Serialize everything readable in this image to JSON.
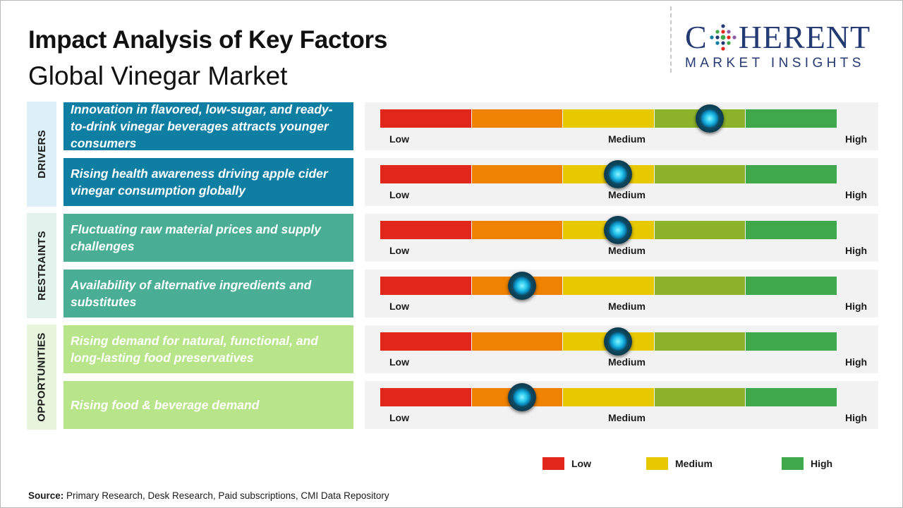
{
  "header": {
    "title": "Impact Analysis of Key Factors",
    "subtitle": "Global Vinegar Market"
  },
  "logo": {
    "brand_prefix": "C",
    "brand_suffix": "HERENT",
    "tagline": "MARKET INSIGHTS",
    "brand_color": "#243a73"
  },
  "chart_data": {
    "type": "bar",
    "title": "Impact Analysis of Key Factors",
    "subtitle": "Global Vinegar Market",
    "scale_labels": [
      "Low",
      "Medium",
      "High"
    ],
    "scale_range": [
      0,
      5
    ],
    "segment_colors": [
      "#e1261c",
      "#ef8200",
      "#e8c800",
      "#8db32a",
      "#3fa84a"
    ],
    "categories": [
      {
        "name": "DRIVERS",
        "band_color": "#ddf0f7",
        "factor_color": "#0f7ea3",
        "factors": [
          {
            "label": "Innovation in flavored, low-sugar, and ready-to-drink vinegar beverages attracts younger consumers",
            "value": 3.6
          },
          {
            "label": "Rising health awareness driving apple cider vinegar consumption globally",
            "value": 2.6
          }
        ]
      },
      {
        "name": "RESTRAINTS",
        "band_color": "#e2f3ee",
        "factor_color": "#4aae94",
        "factors": [
          {
            "label": "Fluctuating raw material prices and supply challenges",
            "value": 2.6
          },
          {
            "label": "Availability of alternative ingredients and substitutes",
            "value": 1.55
          }
        ]
      },
      {
        "name": "OPPORTUNITIES",
        "band_color": "#e6f5dc",
        "factor_color": "#b8e48a",
        "factors": [
          {
            "label": "Rising demand for natural, functional, and long-lasting food preservatives",
            "value": 2.6
          },
          {
            "label": "Rising food & beverage demand",
            "value": 1.55
          }
        ]
      }
    ],
    "legend": [
      {
        "label": "Low",
        "color": "#e1261c"
      },
      {
        "label": "Medium",
        "color": "#e8c800"
      },
      {
        "label": "High",
        "color": "#3fa84a"
      }
    ],
    "legend_position": "bottom-right"
  },
  "source": {
    "label": "Source:",
    "text": " Primary Research, Desk Research, Paid subscriptions, CMI Data Repository"
  }
}
